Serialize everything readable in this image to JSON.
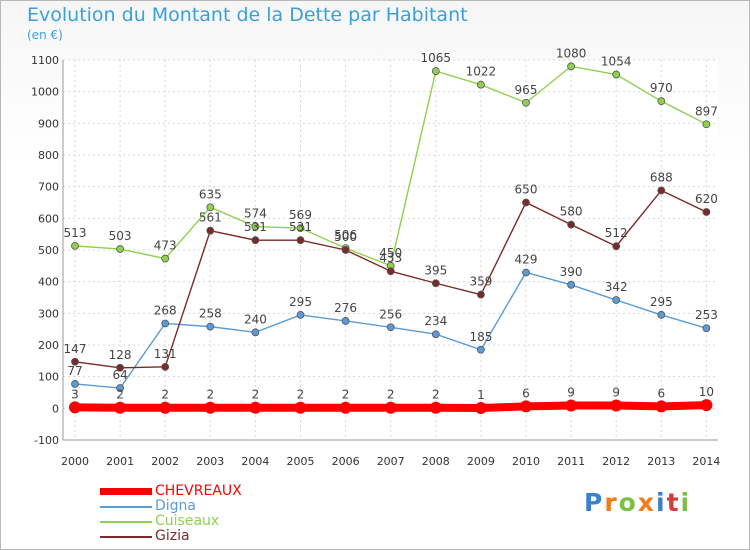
{
  "title": "Evolution du Montant de la Dette par Habitant",
  "subtitle": "(en €)",
  "logo_text": "Proxiti",
  "chart_data": {
    "type": "line",
    "x": [
      "2000",
      "2001",
      "2002",
      "2003",
      "2004",
      "2005",
      "2006",
      "2007",
      "2008",
      "2009",
      "2010",
      "2011",
      "2012",
      "2013",
      "2014"
    ],
    "ylim": [
      -100,
      1100
    ],
    "yticks": [
      -100,
      0,
      100,
      200,
      300,
      400,
      500,
      600,
      700,
      800,
      900,
      1000,
      1100
    ],
    "grid": true,
    "legend_position": "bottom-left",
    "series": [
      {
        "name": "CHEVREAUX",
        "color": "#ff0000",
        "values": [
          3,
          2,
          2,
          2,
          2,
          2,
          2,
          2,
          2,
          1,
          6,
          9,
          9,
          6,
          10
        ]
      },
      {
        "name": "Digna",
        "color": "#5b9bd5",
        "values": [
          77,
          64,
          268,
          258,
          240,
          295,
          276,
          256,
          234,
          185,
          429,
          390,
          342,
          295,
          253
        ]
      },
      {
        "name": "Cuiseaux",
        "color": "#8fd14f",
        "values": [
          513,
          503,
          473,
          635,
          574,
          569,
          506,
          450,
          1065,
          1022,
          965,
          1080,
          1054,
          970,
          897
        ]
      },
      {
        "name": "Gizia",
        "color": "#7b2a2a",
        "values": [
          147,
          128,
          131,
          561,
          531,
          531,
          500,
          433,
          395,
          359,
          650,
          580,
          512,
          688,
          620
        ]
      }
    ]
  }
}
